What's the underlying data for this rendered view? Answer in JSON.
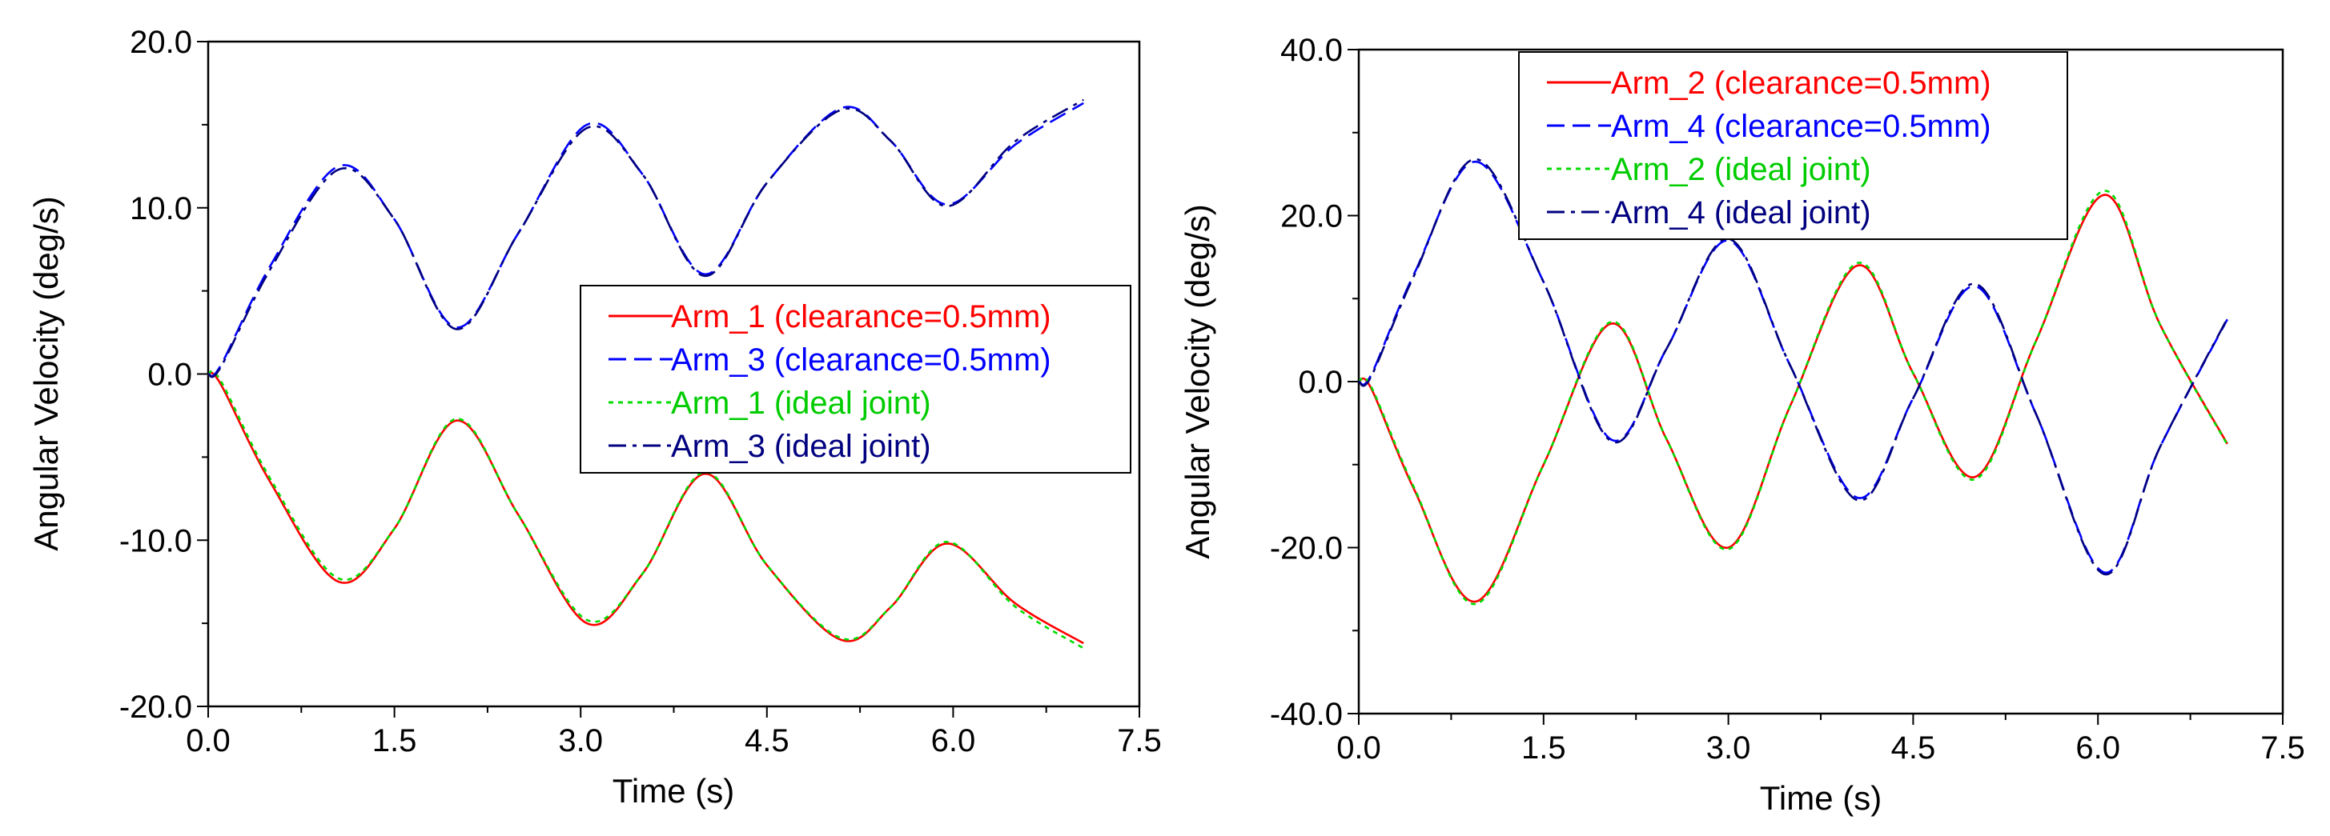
{
  "chart_data": [
    {
      "type": "line",
      "title": "",
      "xlabel": "Time (s)",
      "ylabel": "Angular Velocity (deg/s)",
      "xlim": [
        0,
        7.5
      ],
      "ylim": [
        -20,
        20
      ],
      "xticks": [
        "0.0",
        "1.5",
        "3.0",
        "4.5",
        "6.0",
        "7.5"
      ],
      "yticks": [
        "20.0",
        "10.0",
        "0.0",
        "-10.0",
        "-20.0"
      ],
      "legend_position": "center-right",
      "series": [
        {
          "name": "Arm_1 (clearance=0.5mm)",
          "color": "#ff0000",
          "dash": "solid",
          "label_color": "#ff0000",
          "points": [
            [
              0,
              0
            ],
            [
              0.1,
              -0.6
            ],
            [
              0.5,
              -6.5
            ],
            [
              1.05,
              -12.5
            ],
            [
              1.5,
              -9.3
            ],
            [
              2.0,
              -2.8
            ],
            [
              2.5,
              -8.5
            ],
            [
              3.05,
              -15.0
            ],
            [
              3.5,
              -12.0
            ],
            [
              4.0,
              -6.0
            ],
            [
              4.5,
              -11.5
            ],
            [
              5.1,
              -16.0
            ],
            [
              5.5,
              -14.0
            ],
            [
              5.95,
              -10.2
            ],
            [
              6.5,
              -13.8
            ],
            [
              7.05,
              -16.2
            ]
          ]
        },
        {
          "name": "Arm_3 (clearance=0.5mm)",
          "color": "#0000ff",
          "dash": "dash",
          "label_color": "#0000ff",
          "points": [
            [
              0,
              0
            ],
            [
              0.1,
              0.5
            ],
            [
              0.5,
              6.5
            ],
            [
              1.05,
              12.5
            ],
            [
              1.5,
              9.3
            ],
            [
              2.0,
              2.8
            ],
            [
              2.5,
              8.5
            ],
            [
              3.05,
              15.0
            ],
            [
              3.5,
              12.0
            ],
            [
              4.0,
              6.0
            ],
            [
              4.5,
              11.5
            ],
            [
              5.1,
              16.0
            ],
            [
              5.5,
              14.0
            ],
            [
              5.95,
              10.2
            ],
            [
              6.5,
              13.8
            ],
            [
              7.05,
              16.3
            ]
          ]
        },
        {
          "name": "Arm_1 (ideal joint)",
          "color": "#00dd00",
          "dash": "dot",
          "label_color": "#00cc00",
          "points": [
            [
              0,
              0
            ],
            [
              0.1,
              -0.4
            ],
            [
              0.5,
              -6.3
            ],
            [
              1.05,
              -12.3
            ],
            [
              1.5,
              -9.3
            ],
            [
              2.0,
              -2.7
            ],
            [
              2.5,
              -8.5
            ],
            [
              3.05,
              -14.8
            ],
            [
              3.5,
              -12.0
            ],
            [
              4.0,
              -5.9
            ],
            [
              4.5,
              -11.5
            ],
            [
              5.1,
              -15.9
            ],
            [
              5.5,
              -14.0
            ],
            [
              5.95,
              -10.1
            ],
            [
              6.5,
              -14.0
            ],
            [
              7.05,
              -16.5
            ]
          ]
        },
        {
          "name": "Arm_3 (ideal joint)",
          "color": "#000080",
          "dash": "dashdot",
          "label_color": "#000080",
          "points": [
            [
              0,
              0
            ],
            [
              0.1,
              0.4
            ],
            [
              0.5,
              6.3
            ],
            [
              1.05,
              12.3
            ],
            [
              1.5,
              9.3
            ],
            [
              2.0,
              2.7
            ],
            [
              2.5,
              8.5
            ],
            [
              3.05,
              14.8
            ],
            [
              3.5,
              12.0
            ],
            [
              4.0,
              5.9
            ],
            [
              4.5,
              11.5
            ],
            [
              5.1,
              15.9
            ],
            [
              5.5,
              14.0
            ],
            [
              5.95,
              10.1
            ],
            [
              6.5,
              14.0
            ],
            [
              7.05,
              16.5
            ]
          ]
        }
      ]
    },
    {
      "type": "line",
      "title": "",
      "xlabel": "Time (s)",
      "ylabel": "Angular Velocity (deg/s)",
      "xlim": [
        0,
        7.5
      ],
      "ylim": [
        -40,
        40
      ],
      "xticks": [
        "0.0",
        "1.5",
        "3.0",
        "4.5",
        "6.0",
        "7.5"
      ],
      "yticks": [
        "40.0",
        "20.0",
        "0.0",
        "-20.0",
        "-40.0"
      ],
      "legend_position": "top-left",
      "series": [
        {
          "name": "Arm_2 (clearance=0.5mm)",
          "color": "#ff0000",
          "dash": "solid",
          "label_color": "#ff0000",
          "points": [
            [
              0,
              0
            ],
            [
              0.1,
              -0.8
            ],
            [
              0.45,
              -13.0
            ],
            [
              0.95,
              -26.5
            ],
            [
              1.5,
              -10.0
            ],
            [
              2.05,
              7.0
            ],
            [
              2.5,
              -7.0
            ],
            [
              3.0,
              -20.0
            ],
            [
              3.5,
              -3.0
            ],
            [
              4.05,
              14.0
            ],
            [
              4.5,
              1.0
            ],
            [
              5.0,
              -11.5
            ],
            [
              5.5,
              5.0
            ],
            [
              6.05,
              22.5
            ],
            [
              6.5,
              7.0
            ],
            [
              7.05,
              -7.5
            ]
          ]
        },
        {
          "name": "Arm_4 (clearance=0.5mm)",
          "color": "#0000ff",
          "dash": "dash",
          "label_color": "#0000ff",
          "points": [
            [
              0,
              0
            ],
            [
              0.1,
              0.8
            ],
            [
              0.45,
              13.0
            ],
            [
              0.95,
              26.5
            ],
            [
              1.5,
              12.0
            ],
            [
              2.05,
              -7.0
            ],
            [
              2.5,
              4.0
            ],
            [
              3.0,
              17.0
            ],
            [
              3.5,
              2.0
            ],
            [
              4.05,
              -14.0
            ],
            [
              4.5,
              -2.0
            ],
            [
              5.0,
              11.5
            ],
            [
              5.5,
              -4.0
            ],
            [
              6.05,
              -23.0
            ],
            [
              6.5,
              -8.0
            ],
            [
              7.05,
              7.5
            ]
          ]
        },
        {
          "name": "Arm_2 (ideal joint)",
          "color": "#00dd00",
          "dash": "dot",
          "label_color": "#00cc00",
          "points": [
            [
              0,
              0
            ],
            [
              0.1,
              -0.6
            ],
            [
              0.45,
              -12.8
            ],
            [
              0.95,
              -26.8
            ],
            [
              1.5,
              -10.0
            ],
            [
              2.05,
              7.2
            ],
            [
              2.5,
              -7.0
            ],
            [
              3.0,
              -20.2
            ],
            [
              3.5,
              -3.0
            ],
            [
              4.05,
              14.3
            ],
            [
              4.5,
              1.0
            ],
            [
              5.0,
              -11.8
            ],
            [
              5.5,
              5.0
            ],
            [
              6.05,
              23.0
            ],
            [
              6.5,
              7.0
            ],
            [
              7.05,
              -7.6
            ]
          ]
        },
        {
          "name": "Arm_4 (ideal joint)",
          "color": "#000080",
          "dash": "dashdot",
          "label_color": "#000080",
          "points": [
            [
              0,
              0
            ],
            [
              0.1,
              0.6
            ],
            [
              0.45,
              12.8
            ],
            [
              0.95,
              26.8
            ],
            [
              1.5,
              12.0
            ],
            [
              2.05,
              -7.2
            ],
            [
              2.5,
              4.0
            ],
            [
              3.0,
              17.2
            ],
            [
              3.5,
              2.0
            ],
            [
              4.05,
              -14.3
            ],
            [
              4.5,
              -2.0
            ],
            [
              5.0,
              11.8
            ],
            [
              5.5,
              -4.0
            ],
            [
              6.05,
              -23.2
            ],
            [
              6.5,
              -8.0
            ],
            [
              7.05,
              7.6
            ]
          ]
        }
      ]
    }
  ]
}
